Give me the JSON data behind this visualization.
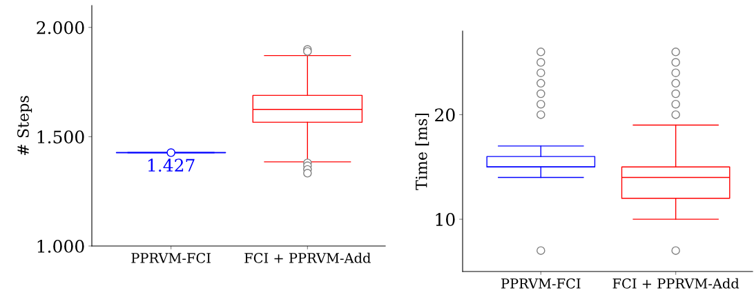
{
  "chart_data": [
    {
      "type": "box",
      "ylabel": "# Steps",
      "categories": [
        "PPRVM-FCI",
        "FCI + PPRVM-Add"
      ],
      "ylim": [
        1000,
        2100
      ],
      "yticks": [
        {
          "value": 1000,
          "label": "1.000"
        },
        {
          "value": 1500,
          "label": "1.500"
        },
        {
          "value": 2000,
          "label": "2.000"
        }
      ],
      "colors": [
        "#0000ff",
        "#ff0000"
      ],
      "boxes": [
        {
          "low": 1427,
          "q1": 1427,
          "median": 1427,
          "q3": 1427,
          "high": 1427,
          "mean": 1427
        },
        {
          "low": 1385,
          "q1": 1566,
          "median": 1625,
          "q3": 1689,
          "high": 1871,
          "outliers": [
            1899,
            1890,
            1380,
            1367,
            1350,
            1333
          ]
        }
      ],
      "annotations": [
        {
          "text": "1.427",
          "x": "PPRVM-FCI",
          "y": 1427
        }
      ],
      "grid": false
    },
    {
      "type": "box",
      "ylabel": "Time [ms]",
      "categories": [
        "PPRVM-FCI",
        "FCI + PPRVM-Add"
      ],
      "ylim": [
        5,
        28
      ],
      "yticks": [
        10,
        20
      ],
      "colors": [
        "#0000ff",
        "#ff0000"
      ],
      "boxes": [
        {
          "low": 14,
          "q1": 15,
          "median": 15,
          "q3": 16,
          "high": 17,
          "outliers": [
            20,
            21,
            22,
            23,
            24,
            25,
            26,
            7
          ]
        },
        {
          "low": 10,
          "q1": 12,
          "median": 14,
          "q3": 15,
          "high": 19,
          "outliers": [
            20,
            21,
            22,
            23,
            24,
            25,
            26,
            7
          ]
        }
      ],
      "grid": false
    }
  ]
}
